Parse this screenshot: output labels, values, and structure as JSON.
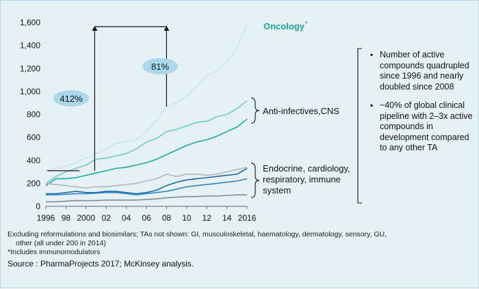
{
  "chart_data": {
    "type": "line",
    "ylim": [
      0,
      1600
    ],
    "xlim": [
      1996,
      2016
    ],
    "yticks": [
      0,
      200,
      400,
      600,
      800,
      1000,
      1200,
      1400,
      1600
    ],
    "ytick_labels": [
      "0",
      "200",
      "400",
      "600",
      "800",
      "1,000",
      "1,200",
      "1,400",
      "1,600"
    ],
    "xticks": [
      1996,
      1998,
      2000,
      2002,
      2004,
      2006,
      2008,
      2010,
      2012,
      2014,
      2016
    ],
    "xtick_labels": [
      "1996",
      "98",
      "2000",
      "02",
      "04",
      "06",
      "08",
      "10",
      "12",
      "14",
      "2016"
    ],
    "x": [
      1996,
      1997,
      1998,
      1999,
      2000,
      2001,
      2002,
      2003,
      2004,
      2005,
      2006,
      2007,
      2008,
      2009,
      2010,
      2011,
      2012,
      2013,
      2014,
      2015,
      2016
    ],
    "series": [
      {
        "name": "Oncology",
        "color": "#c6e9e5",
        "values": [
          310,
          330,
          350,
          380,
          420,
          460,
          500,
          550,
          560,
          580,
          650,
          750,
          870,
          900,
          960,
          1040,
          1140,
          1180,
          1250,
          1380,
          1590
        ]
      },
      {
        "color": "#6ccbc5",
        "values": [
          200,
          260,
          300,
          330,
          360,
          410,
          420,
          440,
          460,
          500,
          560,
          590,
          650,
          670,
          700,
          730,
          740,
          780,
          800,
          850,
          920
        ]
      },
      {
        "color": "#15a9a4",
        "values": [
          180,
          240,
          240,
          250,
          270,
          290,
          310,
          330,
          340,
          360,
          380,
          410,
          450,
          490,
          530,
          560,
          580,
          610,
          650,
          690,
          760
        ]
      },
      {
        "color": "#b4b4b4",
        "values": [
          200,
          190,
          180,
          170,
          160,
          170,
          170,
          180,
          190,
          200,
          220,
          240,
          280,
          260,
          280,
          280,
          270,
          280,
          300,
          320,
          340
        ]
      },
      {
        "color": "#1a6aa8",
        "values": [
          110,
          110,
          120,
          130,
          120,
          120,
          130,
          130,
          120,
          110,
          120,
          140,
          180,
          210,
          230,
          240,
          250,
          260,
          270,
          280,
          330
        ]
      },
      {
        "color": "#2a82c0",
        "values": [
          100,
          100,
          105,
          110,
          110,
          115,
          120,
          120,
          110,
          100,
          110,
          120,
          130,
          150,
          170,
          180,
          190,
          200,
          210,
          220,
          240
        ]
      },
      {
        "color": "#7f8c93",
        "values": [
          40,
          40,
          45,
          50,
          50,
          50,
          55,
          55,
          55,
          55,
          60,
          65,
          75,
          80,
          85,
          85,
          90,
          90,
          95,
          100,
          100
        ]
      }
    ],
    "annotations": {
      "oncology_label": "Oncology",
      "oncology_mark": "*",
      "growth_412": "412%",
      "growth_81": "81%",
      "group_anti": "Anti-infectives,CNS",
      "group_endo": [
        "Endocrine, cardiology,",
        "respiratory, immune",
        "system"
      ]
    }
  },
  "colors": {
    "oncology_label": "#19a39e",
    "bubble": "#aad8ea",
    "background": "#e6f1f6"
  },
  "bullets": [
    "Number of active compounds quadrupled since 1996 and nearly doubled since 2008",
    "~40% of global clinical pipeline with 2–3x active compounds in development compared to any other TA"
  ],
  "footnotes": {
    "line1": "Excluding reformulations and biosimilars; TAs not shown: GI, musculoskeletal, haematology, dermatology, sensory, GU,",
    "line2": "other (all under 200 in 2014)",
    "line3": "*Includes immunomodulators"
  },
  "source": "Source : PharmaProjects 2017; McKinsey analysis."
}
